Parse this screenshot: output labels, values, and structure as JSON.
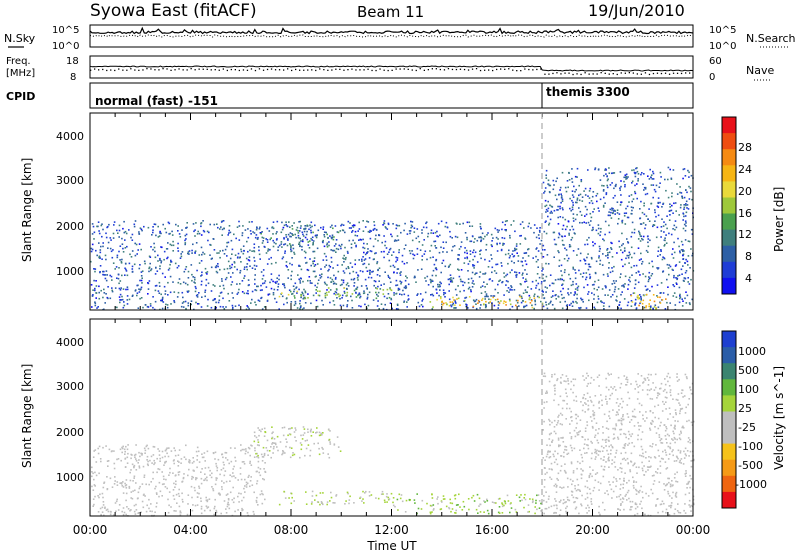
{
  "header": {
    "station": "Syowa East (fitACF)",
    "beam": "Beam 11",
    "date": "19/Jun/2010"
  },
  "noise_panel": {
    "left_label": "N.Sky",
    "right_label": "N.Search",
    "left_ticks": [
      "10^5",
      "10^0"
    ],
    "right_ticks": [
      "10^5",
      "10^0"
    ]
  },
  "freq_panel": {
    "left_label_1": "Freq.",
    "left_label_2": "[MHz]",
    "left_ticks": [
      "18",
      "8"
    ],
    "right_label": "Nave",
    "right_ticks": [
      "60",
      "0"
    ]
  },
  "cpid_panel": {
    "label": "CPID",
    "mode_1": "normal (fast) -151",
    "mode_2": "themis 3300"
  },
  "power_panel": {
    "ylabel": "Slant Range [km]",
    "yticks": [
      "4000",
      "3000",
      "2000",
      "1000"
    ],
    "colorbar_label": "Power [dB]",
    "colorbar_ticks": [
      "28",
      "24",
      "20",
      "16",
      "12",
      "8",
      "4"
    ],
    "colorbar_colors": [
      "#e8111a",
      "#ef4d10",
      "#f58a12",
      "#f6b514",
      "#e9d93a",
      "#9ec83a",
      "#4aa04e",
      "#3f7f7d",
      "#2d5fa5",
      "#1f3dd6",
      "#1010f0"
    ]
  },
  "velocity_panel": {
    "ylabel": "Slant Range [km]",
    "yticks": [
      "4000",
      "3000",
      "2000",
      "1000"
    ],
    "colorbar_label": "Velocity [m s^-1]",
    "colorbar_ticks": [
      "1000",
      "500",
      "100",
      "25",
      "-25",
      "-100",
      "-500",
      "-1000"
    ],
    "colorbar_colors": [
      "#1d3fd0",
      "#2a5da8",
      "#3a8470",
      "#61b73c",
      "#a5d43a",
      "#bfbfbf",
      "#bfbfbf",
      "#f5c21a",
      "#f59a16",
      "#ef6510",
      "#e8111a"
    ]
  },
  "time_axis": {
    "xlabel": "Time UT",
    "ticks": [
      "00:00",
      "04:00",
      "08:00",
      "12:00",
      "16:00",
      "20:00",
      "00:00"
    ]
  },
  "chart_data": [
    {
      "type": "heatmap",
      "title": "Power",
      "xlabel": "Time UT",
      "ylabel": "Slant Range [km]",
      "x_range_hours": [
        0,
        24
      ],
      "ylim_km": [
        180,
        4600
      ],
      "colorbar": {
        "label": "Power [dB]",
        "range": [
          0,
          32
        ]
      },
      "features": [
        {
          "start_h": 0.0,
          "end_h": 18.0,
          "range_low_km": 200,
          "range_high_km": 2200,
          "typical_db": 6
        },
        {
          "start_h": 6.5,
          "end_h": 10.0,
          "range_low_km": 1600,
          "range_high_km": 2100,
          "typical_db": 8
        },
        {
          "start_h": 7.5,
          "end_h": 12.0,
          "range_low_km": 450,
          "range_high_km": 700,
          "typical_db": 14
        },
        {
          "start_h": 13.5,
          "end_h": 18.0,
          "range_low_km": 250,
          "range_high_km": 500,
          "typical_db": 20
        },
        {
          "start_h": 18.0,
          "end_h": 24.0,
          "range_low_km": 200,
          "range_high_km": 3400,
          "typical_db": 6
        },
        {
          "start_h": 21.5,
          "end_h": 23.0,
          "range_low_km": 200,
          "range_high_km": 600,
          "typical_db": 20
        }
      ]
    },
    {
      "type": "heatmap",
      "title": "Velocity",
      "xlabel": "Time UT",
      "ylabel": "Slant Range [km]",
      "x_range_hours": [
        0,
        24
      ],
      "ylim_km": [
        180,
        4600
      ],
      "colorbar": {
        "label": "Velocity [m s^-1]",
        "range": [
          -1000,
          1000
        ]
      },
      "features": [
        {
          "start_h": 0.0,
          "end_h": 7.0,
          "range_low_km": 200,
          "range_high_km": 1800,
          "typical_velocity": -100
        },
        {
          "start_h": 6.5,
          "end_h": 10.0,
          "range_low_km": 1500,
          "range_high_km": 2200,
          "typical_velocity": 0
        },
        {
          "start_h": 7.5,
          "end_h": 12.0,
          "range_low_km": 450,
          "range_high_km": 750,
          "typical_velocity": 100
        },
        {
          "start_h": 12.0,
          "end_h": 18.0,
          "range_low_km": 250,
          "range_high_km": 700,
          "typical_velocity": 200
        },
        {
          "start_h": 18.0,
          "end_h": 24.0,
          "range_low_km": 200,
          "range_high_km": 3400,
          "typical_velocity": -100
        }
      ]
    }
  ]
}
